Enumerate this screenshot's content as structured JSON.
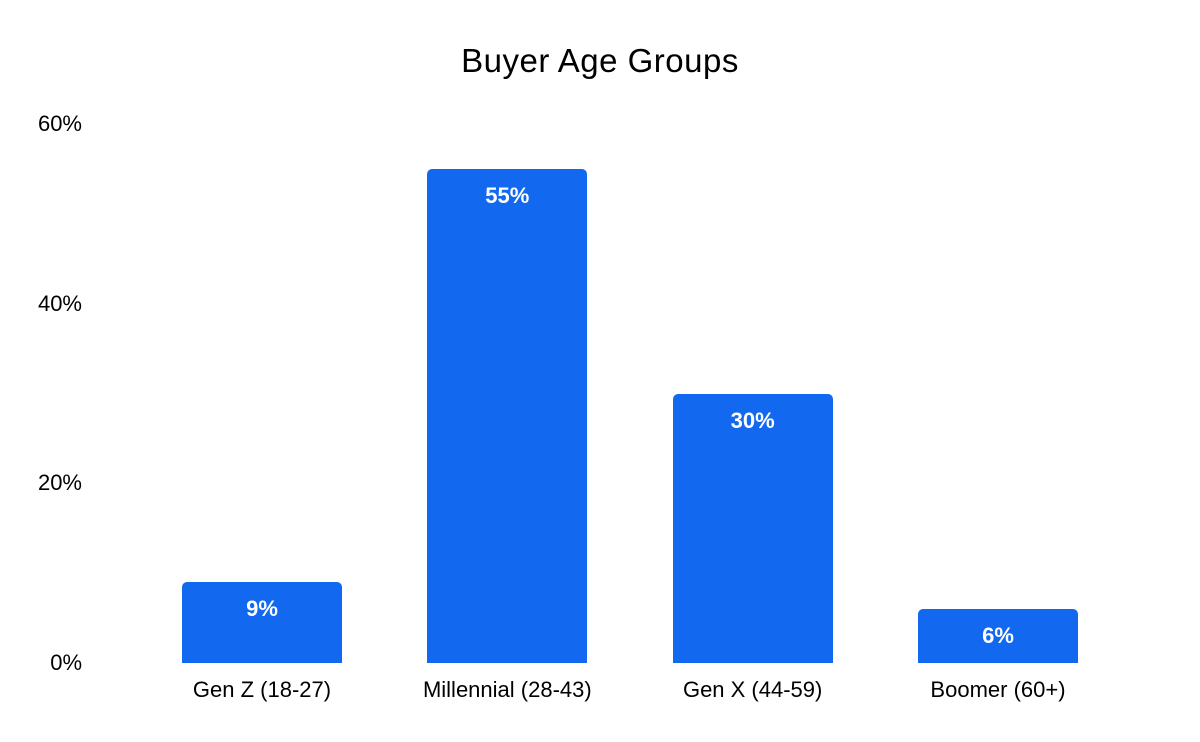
{
  "chart_data": {
    "type": "bar",
    "title": "Buyer Age Groups",
    "categories": [
      "Gen Z (18-27)",
      "Millennial (28-43)",
      "Gen X (44-59)",
      "Boomer (60+)"
    ],
    "values": [
      9,
      55,
      30,
      6
    ],
    "data_labels": [
      "9%",
      "55%",
      "30%",
      "6%"
    ],
    "y_ticks": [
      "0%",
      "20%",
      "40%",
      "60%"
    ],
    "y_tick_values": [
      0,
      20,
      40,
      60
    ],
    "ylim": [
      0,
      60
    ],
    "xlabel": "",
    "ylabel": "",
    "grid": "off",
    "legend": "none",
    "bar_color": "#1269ef",
    "data_label_color": "#ffffff",
    "text_color": "#000000",
    "background_color": "#ffffff"
  }
}
